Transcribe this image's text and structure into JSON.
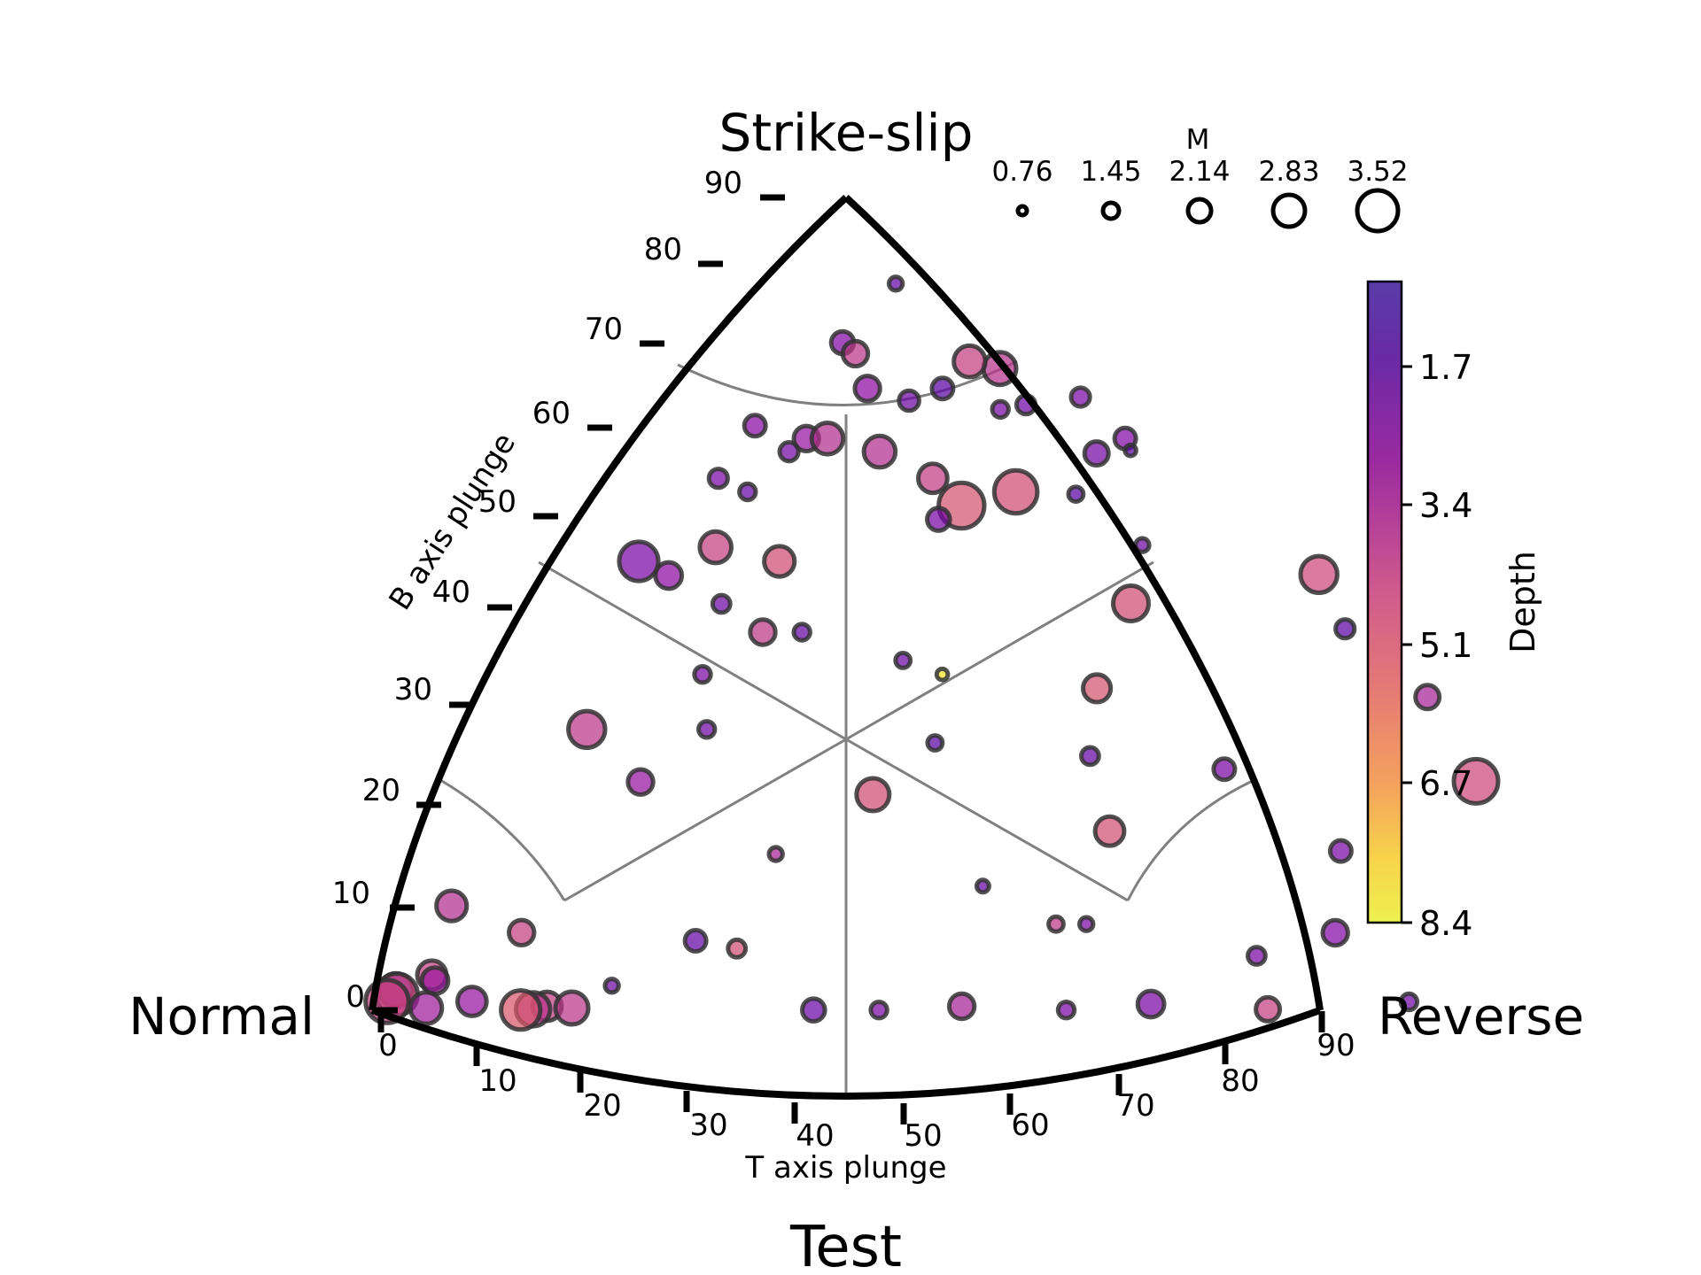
{
  "chart_data": {
    "type": "scatter",
    "diagram": "ternary focal-mechanism triangle",
    "title": "Test",
    "vertex_labels": {
      "top": "Strike-slip",
      "left": "Normal",
      "right": "Reverse"
    },
    "b_axis": {
      "label": "B axis plunge",
      "ticks": [
        "0",
        "10",
        "20",
        "30",
        "40",
        "50",
        "60",
        "70",
        "80",
        "90"
      ]
    },
    "t_axis": {
      "label": "T axis plunge",
      "ticks": [
        "0",
        "10",
        "20",
        "30",
        "40",
        "50",
        "60",
        "70",
        "80",
        "90"
      ]
    },
    "size_legend": {
      "title": "M",
      "values": [
        "0.76",
        "1.45",
        "2.14",
        "2.83",
        "3.52"
      ]
    },
    "colorbar": {
      "label": "Depth",
      "ticks": [
        "1.7",
        "3.4",
        "5.1",
        "6.7",
        "8.4"
      ],
      "range": [
        0.8,
        8.4
      ],
      "colormap": "plasma_r"
    },
    "points": [
      {
        "b": 80,
        "t": 38,
        "m": 2.8,
        "d": 4.6
      },
      {
        "b": 78,
        "t": 27,
        "m": 1.4,
        "d": 2.6
      },
      {
        "b": 76,
        "t": 30,
        "m": 1.6,
        "d": 2.8
      },
      {
        "b": 74,
        "t": 31,
        "m": 0.8,
        "d": 2.0
      },
      {
        "b": 71,
        "t": 19,
        "m": 1.0,
        "d": 2.2
      },
      {
        "b": 70,
        "t": 26,
        "m": 2.5,
        "d": 4.0
      },
      {
        "b": 71,
        "t": 42,
        "m": 1.4,
        "d": 2.0
      },
      {
        "b": 70,
        "t": 46,
        "m": 1.8,
        "d": 3.6
      },
      {
        "b": 68,
        "t": 32,
        "m": 1.8,
        "d": 2.5
      },
      {
        "b": 67,
        "t": 26,
        "m": 2.4,
        "d": 4.4
      },
      {
        "b": 67,
        "t": 29,
        "m": 1.4,
        "d": 2.4
      },
      {
        "b": 65,
        "t": 17,
        "m": 1.7,
        "d": 2.8
      },
      {
        "b": 64,
        "t": 19,
        "m": 1.9,
        "d": 4.1
      },
      {
        "b": 63,
        "t": 30,
        "m": 1.2,
        "d": 2.6
      },
      {
        "b": 61,
        "t": 22,
        "m": 1.9,
        "d": 3.0
      },
      {
        "b": 60,
        "t": 26,
        "m": 1.5,
        "d": 2.4
      },
      {
        "b": 62,
        "t": 52,
        "m": 3.4,
        "d": 4.6
      },
      {
        "b": 61,
        "t": 28,
        "m": 1.6,
        "d": 2.0
      },
      {
        "b": 59,
        "t": 36,
        "m": 1.1,
        "d": 2.0
      },
      {
        "b": 59,
        "t": 39,
        "m": 1.0,
        "d": 2.4
      },
      {
        "b": 58,
        "t": 12,
        "m": 1.6,
        "d": 2.9
      },
      {
        "b": 57,
        "t": 19,
        "m": 1.9,
        "d": 3.2
      },
      {
        "b": 57,
        "t": 21,
        "m": 2.4,
        "d": 3.9
      },
      {
        "b": 56,
        "t": 26,
        "m": 2.4,
        "d": 3.9
      },
      {
        "b": 56,
        "t": 18,
        "m": 1.4,
        "d": 2.5
      },
      {
        "b": 54,
        "t": 31,
        "m": 2.2,
        "d": 4.3
      },
      {
        "b": 52,
        "t": 34,
        "m": 3.5,
        "d": 4.9
      },
      {
        "b": 53,
        "t": 37,
        "m": 3.3,
        "d": 4.7
      },
      {
        "b": 54,
        "t": 11,
        "m": 1.4,
        "d": 2.6
      },
      {
        "b": 53,
        "t": 16,
        "m": 1.2,
        "d": 2.2
      },
      {
        "b": 51,
        "t": 33,
        "m": 1.7,
        "d": 2.6
      },
      {
        "b": 50,
        "t": 44,
        "m": 2.7,
        "d": 4.7
      },
      {
        "b": 49,
        "t": 16,
        "m": 2.4,
        "d": 4.4
      },
      {
        "b": 48,
        "t": 23,
        "m": 2.3,
        "d": 4.7
      },
      {
        "b": 48,
        "t": 3,
        "m": 3.0,
        "d": 2.6
      },
      {
        "b": 47,
        "t": 12,
        "m": 2.0,
        "d": 3.0
      },
      {
        "b": 45,
        "t": 20,
        "m": 1.3,
        "d": 2.4
      },
      {
        "b": 43,
        "t": 25,
        "m": 1.9,
        "d": 4.2
      },
      {
        "b": 43,
        "t": 28,
        "m": 1.2,
        "d": 2.2
      },
      {
        "b": 41,
        "t": 36,
        "m": 1.1,
        "d": 2.3
      },
      {
        "b": 40,
        "t": 39,
        "m": 0.8,
        "d": 8.0
      },
      {
        "b": 40,
        "t": 22,
        "m": 1.2,
        "d": 2.6
      },
      {
        "b": 39,
        "t": 49,
        "m": 2.1,
        "d": 4.9
      },
      {
        "b": 38,
        "t": 56,
        "m": 1.6,
        "d": 2.6
      },
      {
        "b": 39,
        "t": 61,
        "m": 1.6,
        "d": 2.6
      },
      {
        "b": 36,
        "t": 13,
        "m": 2.8,
        "d": 4.1
      },
      {
        "b": 36,
        "t": 25,
        "m": 1.2,
        "d": 2.4
      },
      {
        "b": 35,
        "t": 41,
        "m": 1.1,
        "d": 2.0
      },
      {
        "b": 34,
        "t": 51,
        "m": 1.3,
        "d": 2.2
      },
      {
        "b": 32,
        "t": 22,
        "m": 1.9,
        "d": 3.2
      },
      {
        "b": 31,
        "t": 39,
        "m": 2.5,
        "d": 4.7
      },
      {
        "b": 28,
        "t": 55,
        "m": 2.2,
        "d": 4.8
      },
      {
        "b": 27,
        "t": 70,
        "m": 1.9,
        "d": 2.8
      },
      {
        "b": 26,
        "t": 35,
        "m": 1.0,
        "d": 3.6
      },
      {
        "b": 25,
        "t": 78,
        "m": 1.2,
        "d": 2.4
      },
      {
        "b": 23,
        "t": 49,
        "m": 0.9,
        "d": 2.2
      },
      {
        "b": 21,
        "t": 7,
        "m": 2.3,
        "d": 3.9
      },
      {
        "b": 19,
        "t": 55,
        "m": 1.1,
        "d": 4.2
      },
      {
        "b": 19,
        "t": 57,
        "m": 1.0,
        "d": 2.6
      },
      {
        "b": 18,
        "t": 19,
        "m": 1.9,
        "d": 4.4
      },
      {
        "b": 17,
        "t": 33,
        "m": 1.6,
        "d": 2.2
      },
      {
        "b": 16,
        "t": 36,
        "m": 1.3,
        "d": 4.7
      },
      {
        "b": 15,
        "t": 72,
        "m": 1.3,
        "d": 2.6
      },
      {
        "b": 12,
        "t": 11,
        "m": 2.2,
        "d": 4.4
      },
      {
        "b": 11,
        "t": 12,
        "m": 2.0,
        "d": 3.3
      },
      {
        "b": 10,
        "t": 29,
        "m": 1.0,
        "d": 2.4
      },
      {
        "b": 9,
        "t": 5,
        "m": 2.6,
        "d": 2.3
      },
      {
        "b": 8,
        "t": 6,
        "m": 3.2,
        "d": 4.5
      },
      {
        "b": 6,
        "t": 4,
        "m": 3.3,
        "d": 4.4
      },
      {
        "b": 6,
        "t": 18,
        "m": 2.2,
        "d": 3.2
      },
      {
        "b": 5,
        "t": 65,
        "m": 2.0,
        "d": 2.6
      },
      {
        "b": 4,
        "t": 25,
        "m": 2.2,
        "d": 4.3
      },
      {
        "b": 4,
        "t": 52,
        "m": 1.9,
        "d": 3.6
      },
      {
        "b": 3,
        "t": 13,
        "m": 2.4,
        "d": 3.4
      },
      {
        "b": 3,
        "t": 27,
        "m": 2.5,
        "d": 4.1
      },
      {
        "b": 2,
        "t": 24,
        "m": 2.6,
        "d": 4.0
      },
      {
        "b": 1,
        "t": 23,
        "m": 3.0,
        "d": 5.0
      },
      {
        "b": 2,
        "t": 77,
        "m": 1.8,
        "d": 4.4
      },
      {
        "b": 1,
        "t": 47,
        "m": 1.2,
        "d": 2.6
      },
      {
        "b": 1,
        "t": 43,
        "m": 1.7,
        "d": 2.3
      },
      {
        "b": 1,
        "t": 59,
        "m": 1.2,
        "d": 2.6
      }
    ]
  }
}
